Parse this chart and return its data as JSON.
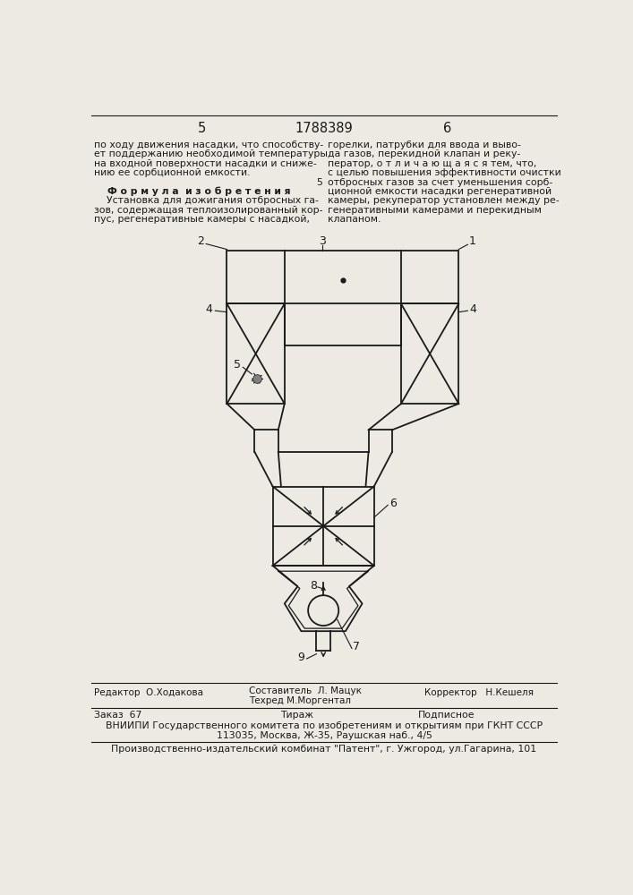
{
  "bg_color": "#ede9e3",
  "line_color": "#1a1a1a",
  "page_number_left": "5",
  "page_number_center": "1788389",
  "page_number_right": "6",
  "text_left_col": [
    "по ходу движения насадки, что способству-",
    "ет поддержанию необходимой температуры",
    "на входной поверхности насадки и сниже-",
    "нию ее сорбционной емкости.",
    "",
    "    Ф о р м у л а  и з о б р е т е н и я",
    "    Установка для дожигания отбросных га-",
    "зов, содержащая теплоизолированный кор-",
    "пус, регенеративные камеры с насадкой,"
  ],
  "text_right_col": [
    "горелки, патрубки для ввода и выво-",
    "да газов, перекидной клапан и реку-",
    "ператор, о т л и ч а ю щ а я с я тем, что,",
    "с целью повышения эффективности очистки",
    "отбросных газов за счет уменьшения сорб-",
    "ционной емкости насадки регенеративной",
    "камеры, рекуператор установлен между ре-",
    "генеративными камерами и перекидным",
    "клапаном."
  ],
  "line_5_label": "5",
  "footer_line1_col1": "Редактор  О.Ходакова",
  "footer_line1_col2": "Составитель  Л. Мацук",
  "footer_line1_col2b": "Техред М.Моргентал",
  "footer_line1_col3": "Корректор   Н.Кешеля",
  "footer_line2_col1": "Заказ  67",
  "footer_line2_col2": "Тираж",
  "footer_line2_col3": "Подписное",
  "footer_line3": "ВНИИПИ Государственного комитета по изобретениям и открытиям при ГКНТ СССР",
  "footer_line4": "113035, Москва, Ж-35, Раушская наб., 4/5",
  "footer_line5": "Производственно-издательский комбинат \"Патент\", г. Ужгород, ул.Гагарина, 101"
}
